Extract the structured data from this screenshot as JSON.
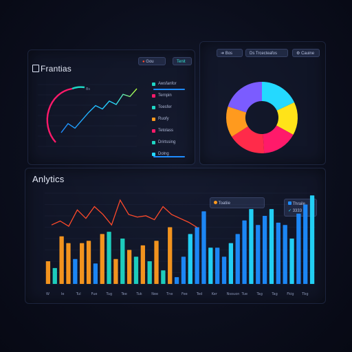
{
  "colors": {
    "orange": "#ff9a1e",
    "teal": "#1fd6c4",
    "pink": "#ff1a6a",
    "yellow": "#ffe319",
    "blue": "#1e8cff",
    "cyan": "#24d9ff",
    "purple": "#7b5cff",
    "red_line": "#ff4a2a"
  },
  "top_left": {
    "title_icon": "bar-chart-icon",
    "title": "Frantias",
    "pill_label": "Gou",
    "pill2_label": "Tenit",
    "legend": [
      {
        "label": "Awsfanfor",
        "color": "#1fd6c4"
      },
      {
        "label": "Ternpin",
        "color": "#ff1a6a"
      },
      {
        "label": "Toesfer",
        "color": "#1fd6c4"
      },
      {
        "label": "Ruofy",
        "color": "#ff9a1e"
      },
      {
        "label": "Tetolass",
        "color": "#ff1a6a"
      },
      {
        "label": "Drirtssing",
        "color": "#1fd6c4"
      },
      {
        "label": "Dolng",
        "color": "#24d9ff"
      }
    ],
    "line_label": "Bs",
    "line_values": [
      22,
      38,
      30,
      44,
      58,
      70,
      64,
      78,
      72,
      90,
      86,
      100
    ]
  },
  "top_right": {
    "pill_a": "Bos",
    "pill_b": "Ds Trcecteafos",
    "pill_c": "Cauine",
    "donut_icon": "settings-icon",
    "donut": [
      {
        "label": "cyan",
        "value": 18,
        "color": "#24d9ff"
      },
      {
        "label": "yellow",
        "value": 15,
        "color": "#ffe319"
      },
      {
        "label": "pink",
        "value": 16,
        "color": "#ff1a6a"
      },
      {
        "label": "red",
        "value": 17,
        "color": "#ff2b4a"
      },
      {
        "label": "orange",
        "value": 14,
        "color": "#ff9a1e"
      },
      {
        "label": "purple",
        "value": 20,
        "color": "#7b5cff"
      }
    ]
  },
  "bottom": {
    "title": "Anlytics",
    "legend_a": "Toatiie",
    "legend_b": "Thraile",
    "legend_b_value": "3333",
    "y_ticks": [
      "",
      "",
      " ",
      "",
      "",
      "",
      "",
      "",
      ""
    ],
    "x_ticks": [
      "W",
      "Ie",
      "Tul",
      "Fue",
      "Tug",
      "Tee",
      "Tuk",
      "Nee",
      "Tne",
      "Fee",
      "Ted",
      "Ker",
      "Nsouon",
      "Tue",
      "Tag",
      "Tag",
      "Fkig",
      "Tbg"
    ]
  },
  "chart_data": [
    {
      "type": "line",
      "title": "Frantias",
      "x": [
        1,
        2,
        3,
        4,
        5,
        6,
        7,
        8,
        9,
        10,
        11,
        12
      ],
      "series": [
        {
          "values": [
            22,
            38,
            30,
            44,
            58,
            70,
            64,
            78,
            72,
            90,
            86,
            100
          ]
        }
      ]
    },
    {
      "type": "pie",
      "values": [
        18,
        15,
        16,
        17,
        14,
        20
      ]
    },
    {
      "type": "bar",
      "title": "Anlytics",
      "series": [
        {
          "values": [
            20,
            14,
            42,
            36,
            22,
            36,
            38,
            18,
            44,
            46,
            22,
            40,
            30,
            24,
            34,
            20,
            38,
            12,
            50,
            6,
            24,
            44,
            50,
            64,
            32,
            32,
            24,
            36,
            44,
            56,
            66,
            52,
            60,
            66,
            54,
            52,
            40,
            62,
            70,
            78
          ]
        },
        {
          "line": [
            32,
            38,
            30,
            55,
            42,
            60,
            48,
            32,
            70,
            48,
            44,
            46,
            40,
            60,
            48,
            42,
            36,
            28
          ]
        }
      ]
    }
  ]
}
